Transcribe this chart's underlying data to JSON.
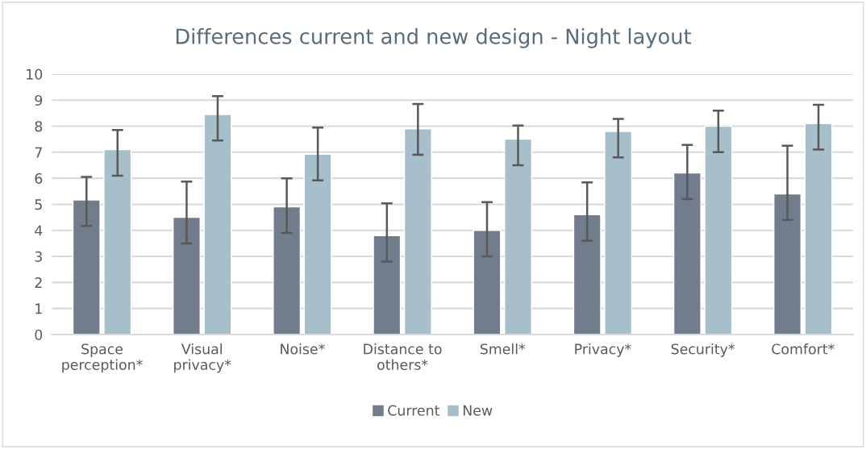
{
  "chart_data": {
    "type": "bar",
    "title": "Differences current and new design - Night layout",
    "categories": [
      "Space\nperception*",
      "Visual\nprivacy*",
      "Noise*",
      "Distance to\nothers*",
      "Smell*",
      "Privacy*",
      "Security*",
      "Comfort*"
    ],
    "series": [
      {
        "name": "Current",
        "color": "#717d8d",
        "values": [
          5.17,
          4.5,
          4.9,
          3.8,
          4.0,
          4.6,
          6.2,
          5.4
        ],
        "errors": [
          [
            4.17,
            6.05
          ],
          [
            3.5,
            5.87
          ],
          [
            3.9,
            6.0
          ],
          [
            2.8,
            5.04
          ],
          [
            3.0,
            5.08
          ],
          [
            3.6,
            5.84
          ],
          [
            5.2,
            7.28
          ],
          [
            4.4,
            7.25
          ]
        ]
      },
      {
        "name": "New",
        "color": "#a7bfca",
        "values": [
          7.1,
          8.45,
          6.92,
          7.9,
          7.5,
          7.8,
          8.0,
          8.1
        ],
        "errors": [
          [
            6.1,
            7.85
          ],
          [
            7.45,
            9.15
          ],
          [
            5.92,
            7.95
          ],
          [
            6.9,
            8.85
          ],
          [
            6.5,
            8.02
          ],
          [
            6.8,
            8.28
          ],
          [
            7.0,
            8.6
          ],
          [
            7.1,
            8.82
          ]
        ]
      }
    ],
    "ylim": [
      0,
      10
    ],
    "yticks": [
      0,
      1,
      2,
      3,
      4,
      5,
      6,
      7,
      8,
      9,
      10
    ],
    "grid": "y",
    "legend": "bottom"
  }
}
